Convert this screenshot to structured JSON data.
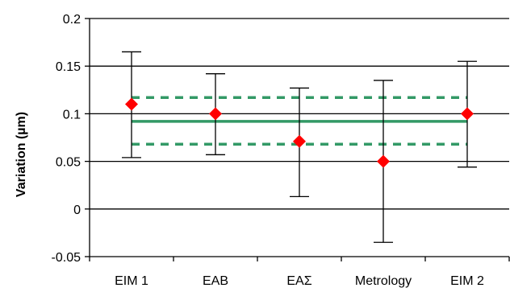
{
  "chart_data": {
    "type": "scatter",
    "title": "",
    "xlabel": "",
    "ylabel": "Variation (µm)",
    "categories": [
      "EIM 1",
      "EAB",
      "EAΣ",
      "Metrology",
      "EIM 2"
    ],
    "values": [
      0.11,
      0.1,
      0.071,
      0.05,
      0.1
    ],
    "error_low": [
      0.054,
      0.057,
      0.013,
      -0.035,
      0.044
    ],
    "error_high": [
      0.165,
      0.142,
      0.127,
      0.135,
      0.155
    ],
    "ylim": [
      -0.05,
      0.2
    ],
    "yticks": [
      -0.05,
      0,
      0.05,
      0.1,
      0.15,
      0.2
    ],
    "ytick_labels": [
      "-0.05",
      "0",
      "0.05",
      "0.1",
      "0.15",
      "0.2"
    ],
    "reference_line": 0.092,
    "reference_band": [
      0.068,
      0.117
    ],
    "grid": true,
    "marker_color": "#ff0000",
    "reference_color": "#339966"
  }
}
